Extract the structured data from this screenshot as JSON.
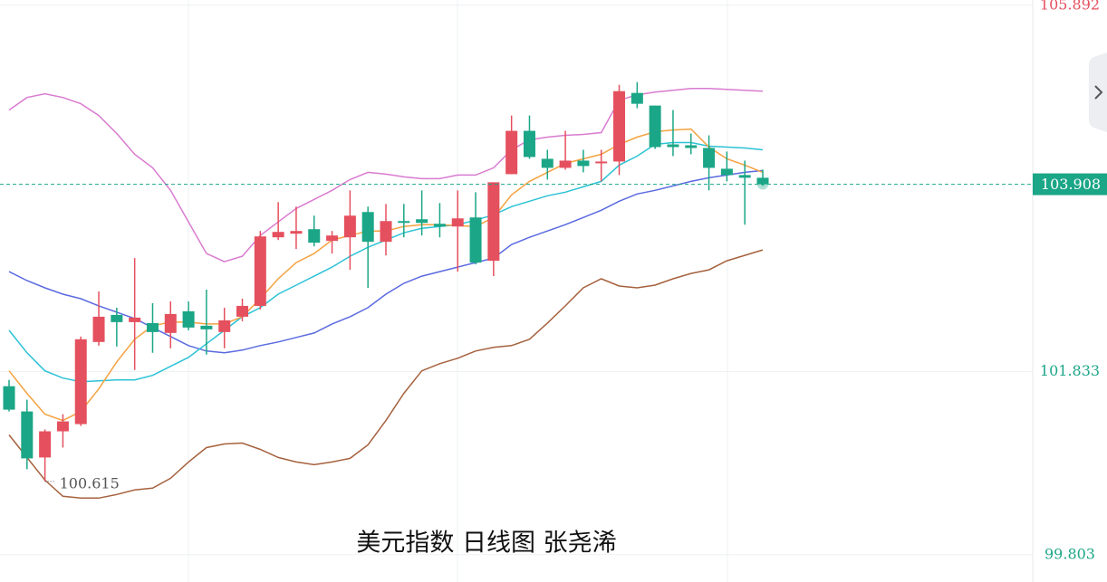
{
  "chart_data": {
    "type": "candlestick",
    "title": "美元指数 日线图  张尧浠",
    "categories": [
      null,
      null,
      null,
      null,
      null,
      null,
      null,
      null,
      null,
      null,
      null,
      null,
      null,
      null,
      null,
      null,
      null,
      null,
      null,
      null,
      null,
      null,
      null,
      null,
      null,
      null,
      null,
      null,
      null,
      null,
      null,
      null,
      null,
      null,
      null,
      null,
      null,
      null,
      null,
      null,
      null,
      null,
      null
    ],
    "open": [
      101.67,
      101.39,
      100.88,
      101.17,
      101.25,
      102.16,
      102.46,
      102.38,
      102.37,
      102.26,
      102.5,
      102.34,
      102.27,
      102.44,
      102.56,
      103.32,
      103.36,
      103.41,
      103.28,
      103.32,
      103.6,
      103.27,
      103.5,
      103.52,
      103.47,
      103.44,
      103.54,
      103.06,
      104.02,
      104.5,
      104.19,
      104.09,
      104.17,
      104.14,
      104.16,
      104.92,
      104.78,
      104.35,
      104.34,
      104.31,
      104.08,
      104.01,
      103.98
    ],
    "high": [
      101.74,
      101.52,
      101.19,
      101.36,
      102.22,
      102.72,
      102.54,
      103.09,
      102.59,
      102.61,
      102.61,
      102.74,
      102.54,
      102.64,
      103.39,
      103.71,
      103.66,
      103.56,
      103.39,
      103.84,
      103.66,
      103.69,
      103.69,
      103.84,
      103.7,
      103.84,
      103.82,
      103.93,
      104.67,
      104.67,
      104.29,
      104.5,
      104.29,
      104.29,
      105.01,
      105.04,
      104.78,
      104.73,
      104.47,
      104.45,
      104.27,
      104.17,
      104.07
    ],
    "low": [
      101.39,
      100.75,
      100.615,
      100.99,
      101.23,
      102.12,
      102.11,
      101.85,
      102.04,
      102.09,
      102.29,
      102.02,
      102.09,
      102.39,
      102.52,
      103.29,
      103.19,
      103.22,
      103.14,
      102.96,
      102.76,
      103.12,
      103.32,
      103.34,
      103.32,
      102.94,
      103.02,
      102.89,
      104.02,
      104.19,
      103.96,
      104.07,
      104.04,
      103.94,
      104.01,
      104.75,
      104.3,
      104.22,
      104.24,
      103.84,
      103.94,
      103.46,
      103.89
    ],
    "close": [
      101.41,
      100.87,
      101.17,
      101.28,
      102.19,
      102.44,
      102.38,
      102.43,
      102.27,
      102.47,
      102.32,
      102.3,
      102.4,
      102.56,
      103.33,
      103.38,
      103.39,
      103.26,
      103.34,
      103.56,
      103.27,
      103.5,
      103.48,
      103.48,
      103.44,
      103.53,
      103.04,
      103.93,
      104.5,
      104.21,
      104.09,
      104.17,
      104.11,
      104.16,
      104.94,
      104.8,
      104.32,
      104.32,
      104.31,
      104.09,
      104.01,
      103.98,
      103.908
    ],
    "up_color": "#e5505e",
    "down_color": "#1ba687",
    "series": [
      {
        "color": "#d97bd0",
        "values": [
          104.73,
          104.87,
          104.91,
          104.87,
          104.8,
          104.67,
          104.47,
          104.24,
          104.09,
          103.84,
          103.49,
          103.14,
          103.05,
          103.11,
          103.34,
          103.49,
          103.64,
          103.74,
          103.84,
          103.96,
          104.04,
          104.02,
          103.99,
          103.97,
          103.97,
          104.01,
          104.01,
          104.09,
          104.29,
          104.4,
          104.43,
          104.45,
          104.46,
          104.48,
          104.84,
          104.9,
          104.93,
          104.95,
          104.97,
          104.97,
          104.96,
          104.95,
          104.94
        ]
      },
      {
        "color": "#a5613d",
        "values": [
          101.13,
          100.88,
          100.63,
          100.45,
          100.43,
          100.43,
          100.47,
          100.52,
          100.54,
          100.65,
          100.83,
          100.99,
          101.03,
          101.04,
          100.97,
          100.88,
          100.83,
          100.8,
          100.83,
          100.87,
          101.02,
          101.29,
          101.59,
          101.84,
          101.92,
          101.98,
          102.06,
          102.1,
          102.12,
          102.19,
          102.37,
          102.56,
          102.76,
          102.86,
          102.78,
          102.76,
          102.79,
          102.86,
          102.92,
          102.96,
          103.06,
          103.12,
          103.18
        ]
      },
      {
        "color": "#5a6ae0",
        "values": [
          102.94,
          102.84,
          102.76,
          102.69,
          102.64,
          102.56,
          102.49,
          102.42,
          102.32,
          102.22,
          102.12,
          102.06,
          102.04,
          102.07,
          102.12,
          102.16,
          102.21,
          102.26,
          102.36,
          102.44,
          102.54,
          102.69,
          102.81,
          102.89,
          102.94,
          102.99,
          103.04,
          103.09,
          103.24,
          103.32,
          103.39,
          103.46,
          103.54,
          103.62,
          103.72,
          103.8,
          103.84,
          103.89,
          103.94,
          103.98,
          104.01,
          104.04,
          104.06
        ]
      },
      {
        "color": "#2cc2d6",
        "values": [
          102.29,
          102.04,
          101.84,
          101.76,
          101.72,
          101.73,
          101.74,
          101.74,
          101.79,
          101.89,
          101.99,
          102.14,
          102.29,
          102.44,
          102.54,
          102.69,
          102.79,
          102.89,
          102.99,
          103.11,
          103.21,
          103.29,
          103.37,
          103.42,
          103.44,
          103.46,
          103.51,
          103.57,
          103.66,
          103.72,
          103.78,
          103.82,
          103.88,
          103.94,
          104.12,
          104.22,
          104.35,
          104.37,
          104.37,
          104.33,
          104.32,
          104.31,
          104.29
        ]
      },
      {
        "color": "#f4a240",
        "values": [
          101.84,
          101.59,
          101.36,
          101.29,
          101.39,
          101.64,
          101.94,
          102.19,
          102.34,
          102.38,
          102.38,
          102.36,
          102.36,
          102.44,
          102.64,
          102.86,
          103.04,
          103.14,
          103.29,
          103.34,
          103.39,
          103.39,
          103.44,
          103.46,
          103.46,
          103.45,
          103.44,
          103.54,
          103.79,
          103.94,
          104.04,
          104.14,
          104.19,
          104.24,
          104.35,
          104.43,
          104.49,
          104.51,
          104.52,
          104.32,
          104.19,
          104.12,
          104.04
        ]
      }
    ],
    "ylim": [
      99.5,
      105.95
    ],
    "yticks": [
      99.803,
      101.833,
      105.892
    ],
    "grid": true,
    "last_price": 103.908,
    "min_annotation": 100.615
  }
}
